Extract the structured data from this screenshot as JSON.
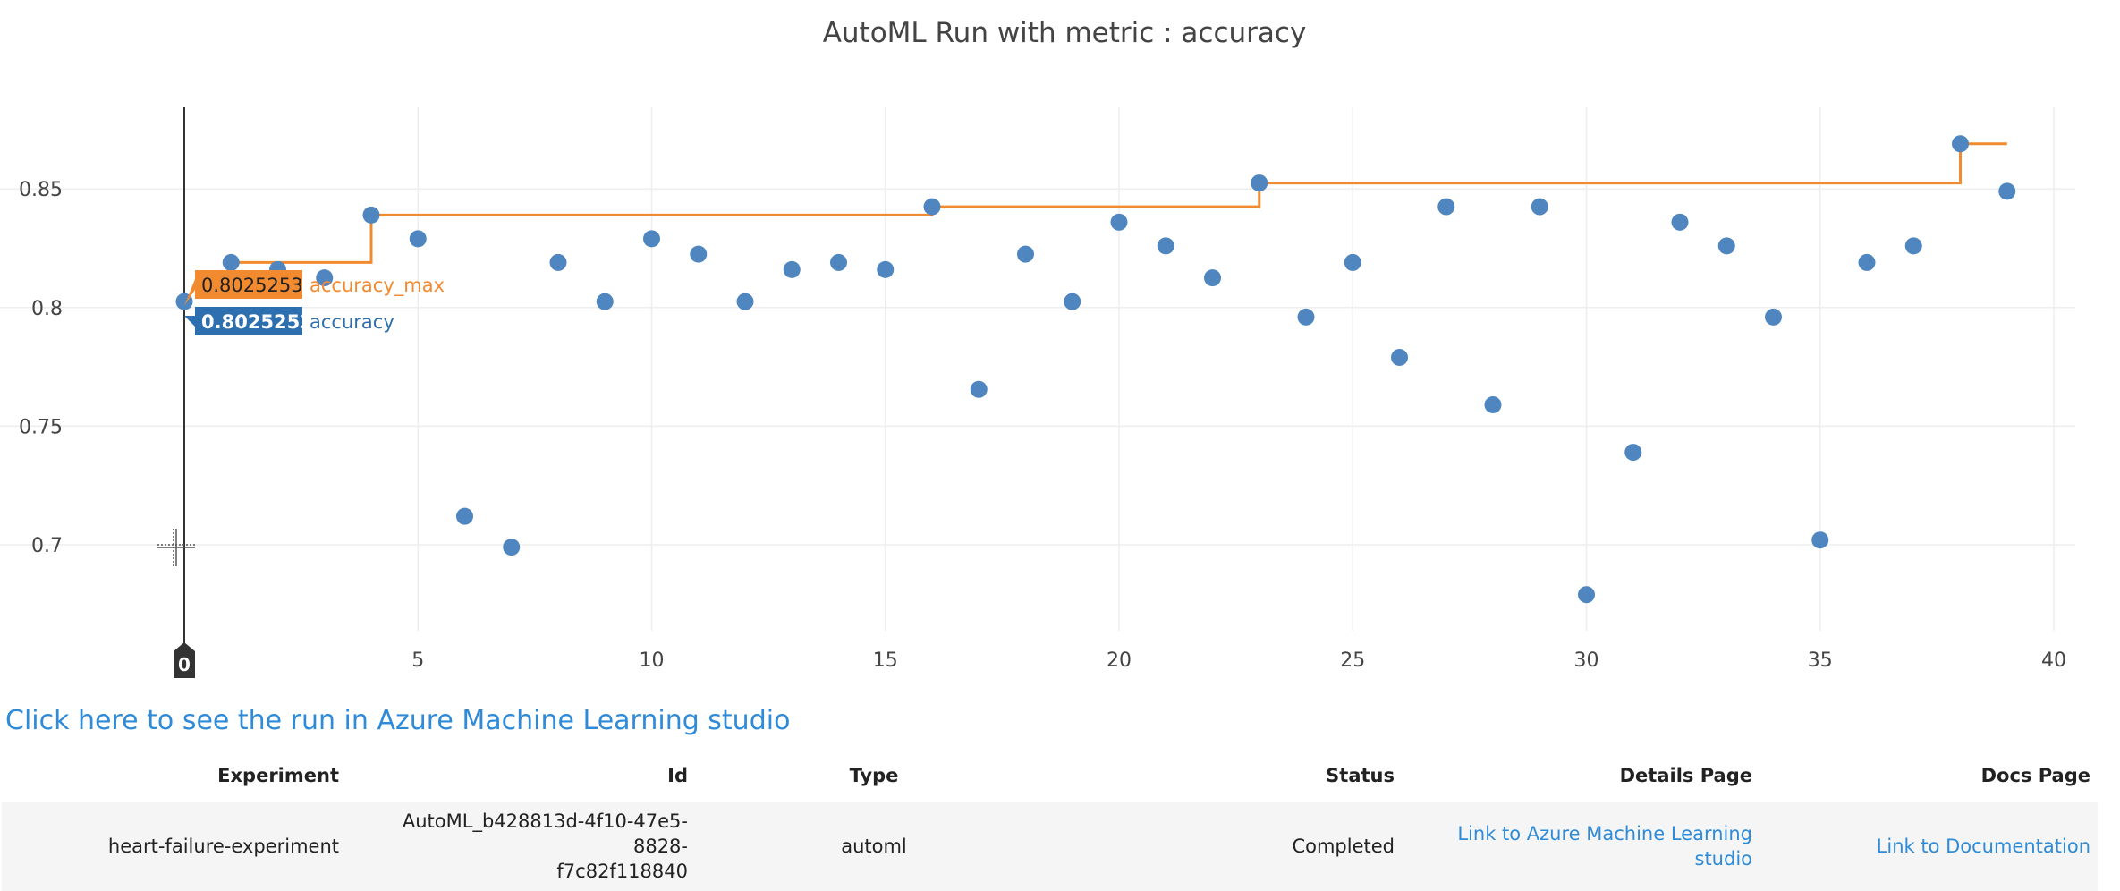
{
  "chart_data": {
    "type": "scatter",
    "title": "AutoML Run with metric : accuracy",
    "xlabel": "",
    "ylabel": "",
    "xlim": [
      0,
      40
    ],
    "ylim": [
      0.67,
      0.885
    ],
    "x_ticks": [
      5,
      10,
      15,
      20,
      25,
      30,
      35,
      40
    ],
    "y_ticks": [
      0.7,
      0.75,
      0.8,
      0.85
    ],
    "y_tick_labels": [
      "0.7",
      "0.75",
      "0.8",
      "0.85"
    ],
    "grid": true,
    "series": [
      {
        "name": "accuracy",
        "mode": "markers",
        "color": "#4f86c0",
        "x": [
          0,
          1,
          2,
          3,
          4,
          5,
          6,
          7,
          8,
          9,
          10,
          11,
          12,
          13,
          14,
          15,
          16,
          17,
          18,
          19,
          20,
          21,
          22,
          23,
          24,
          25,
          26,
          27,
          28,
          29,
          30,
          31,
          32,
          33,
          34,
          35,
          36,
          37,
          38,
          39
        ],
        "y": [
          0.8025253,
          0.819,
          0.816,
          0.8125,
          0.839,
          0.829,
          0.712,
          0.699,
          0.819,
          0.8025,
          0.829,
          0.8225,
          0.8025,
          0.816,
          0.819,
          0.816,
          0.8425,
          0.7655,
          0.8225,
          0.8025,
          0.836,
          0.826,
          0.8125,
          0.8525,
          0.796,
          0.819,
          0.779,
          0.8425,
          0.759,
          0.8425,
          0.679,
          0.739,
          0.836,
          0.826,
          0.796,
          0.702,
          0.819,
          0.826,
          0.869,
          0.849
        ]
      },
      {
        "name": "accuracy_max",
        "mode": "step-line",
        "color": "#f28b30",
        "x": [
          1,
          4,
          16,
          23,
          38,
          39
        ],
        "y": [
          0.819,
          0.839,
          0.8425,
          0.8525,
          0.869,
          0.869
        ]
      }
    ],
    "hover": {
      "x_label": "0",
      "items": [
        {
          "value": "0.8025253",
          "name": "accuracy_max",
          "color": "#f28b30"
        },
        {
          "value": "0.8025253",
          "name": "accuracy",
          "color": "#2e6fb0"
        }
      ]
    }
  },
  "link_text": "Click here to see the run in Azure Machine Learning studio",
  "table": {
    "headers": {
      "experiment": "Experiment",
      "id": "Id",
      "type": "Type",
      "status": "Status",
      "details": "Details Page",
      "docs": "Docs Page"
    },
    "row": {
      "experiment": "heart-failure-experiment",
      "id_line1": "AutoML_b428813d-4f10-47e5-8828-",
      "id_line2": "f7c82f118840",
      "type": "automl",
      "status": "Completed",
      "details": "Link to Azure Machine Learning studio",
      "docs": "Link to Documentation"
    }
  },
  "colors": {
    "link": "#2f8bd8",
    "grid": "#eeeeee",
    "axis": "#444444"
  }
}
